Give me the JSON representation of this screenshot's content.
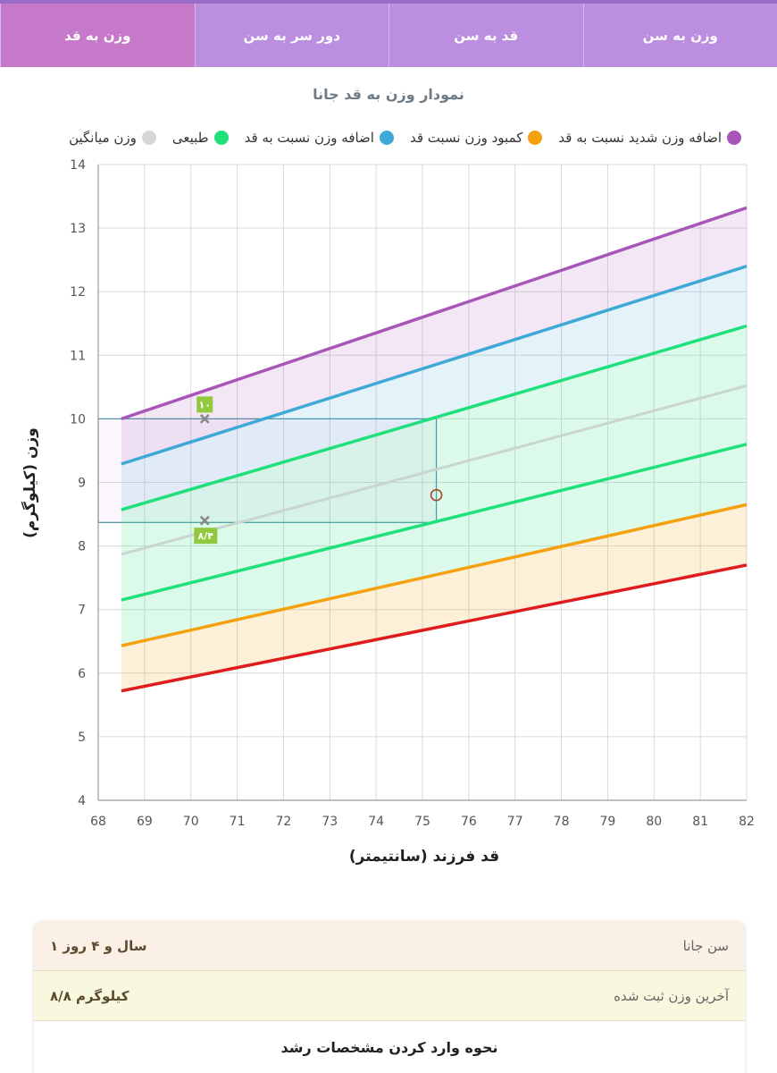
{
  "tabs": [
    {
      "label": "وزن به سن",
      "active": false
    },
    {
      "label": "قد به سن",
      "active": false
    },
    {
      "label": "دور سر به سن",
      "active": false
    },
    {
      "label": "وزن به قد",
      "active": true
    }
  ],
  "chart_title": "نمودار وزن به قد جانا",
  "legend": [
    {
      "label": "اضافه وزن شدید نسبت به قد",
      "color": "#a855b8"
    },
    {
      "label": "کمبود وزن نسبت قد",
      "color": "#f5a00f"
    },
    {
      "label": "اضافه وزن نسبت به قد",
      "color": "#3ea9d6"
    },
    {
      "label": "طبیعی",
      "color": "#1fe07a"
    },
    {
      "label": "وزن میانگین",
      "color": "#d6d6d6"
    }
  ],
  "chart_data": {
    "type": "area",
    "xlabel": "قد فرزند (سانتیمتر)",
    "ylabel": "وزن (کیلوگرم)",
    "xlim": [
      68,
      82
    ],
    "ylim": [
      4,
      14
    ],
    "xticks": [
      68,
      69,
      70,
      71,
      72,
      73,
      74,
      75,
      76,
      77,
      78,
      79,
      80,
      81,
      82
    ],
    "yticks": [
      4,
      5,
      6,
      7,
      8,
      9,
      10,
      11,
      12,
      13,
      14
    ],
    "grid": true,
    "series": [
      {
        "color": "#a855b8",
        "fill": "rgba(168,85,184,0.14)",
        "x": [
          68.5,
          82
        ],
        "values": [
          10.0,
          13.32
        ]
      },
      {
        "color": "#3ea9d6",
        "fill": "rgba(62,169,214,0.14)",
        "x": [
          68.5,
          82
        ],
        "values": [
          9.29,
          12.4
        ]
      },
      {
        "color": "#1fe07a",
        "fill": "rgba(31,224,122,0.16)",
        "x": [
          68.5,
          82
        ],
        "values": [
          8.57,
          11.46
        ]
      },
      {
        "color": "#c9d6cf",
        "fill": "none",
        "x": [
          68.5,
          82
        ],
        "values": [
          7.87,
          10.52
        ]
      },
      {
        "color": "#1fe07a",
        "fill": "rgba(31,224,122,0.16)",
        "x": [
          68.5,
          82
        ],
        "values": [
          7.15,
          9.6
        ]
      },
      {
        "color": "#f5a00f",
        "fill": "rgba(245,160,15,0.16)",
        "x": [
          68.5,
          82
        ],
        "values": [
          6.43,
          8.65
        ]
      },
      {
        "color": "#e01b1b",
        "fill": "rgba(224,27,27,0.16)",
        "x": [
          68.5,
          82
        ],
        "values": [
          5.72,
          7.7
        ]
      }
    ],
    "highlight_range": {
      "x": [
        68,
        75.3
      ],
      "y": [
        8.37,
        10.0
      ]
    },
    "markers": [
      {
        "x": 70.3,
        "y": 10.0,
        "label": "۱۰"
      },
      {
        "x": 70.3,
        "y": 8.4,
        "label": "۸/۴"
      }
    ],
    "child_point": {
      "x": 75.3,
      "y": 8.8
    }
  },
  "info": {
    "age_label": "سن جانا",
    "age_value": "۱ سال و ۴ روز",
    "weight_label": "آخرین وزن ثبت شده",
    "weight_value": "۸/۸ کیلوگرم",
    "guide_label": "نحوه وارد کردن مشخصات رشد"
  }
}
